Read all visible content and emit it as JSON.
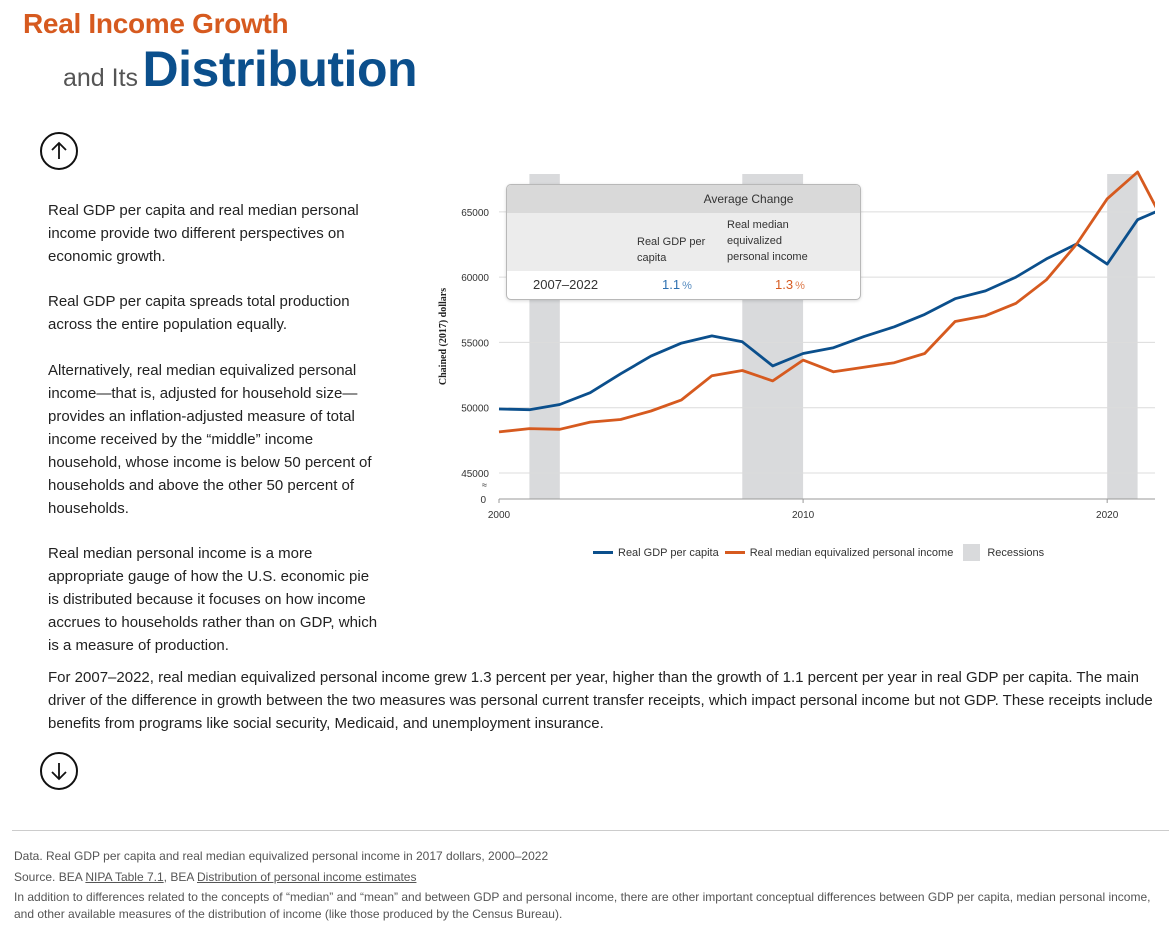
{
  "header": {
    "title_line1": "Real Income Growth",
    "title_prefix": "and Its",
    "title_main": "Distribution"
  },
  "paragraphs": [
    "Real GDP per capita and real median personal income provide two different perspectives on economic growth.",
    "Real GDP per capita spreads total production across the entire population equally.",
    "Alternatively, real median equivalized personal income—that is, adjusted for household size—provides an inflation-adjusted measure of total income received by the “middle” income household, whose income is below 50 percent of households and above the other 50 percent of households.",
    "Real median personal income is a more appropriate gauge of how the U.S. economic pie is distributed because it focuses on how income accrues to households rather than on GDP, which is a measure of production."
  ],
  "wide_paragraph": "For 2007–2022, real median equivalized personal income grew 1.3 percent per year, higher than the growth of 1.1 percent per year in real GDP per capita. The main driver of the difference in growth between the two measures was personal current transfer receipts, which impact personal income but not GDP. These receipts include benefits from programs like social security, Medicaid, and unemployment insurance.",
  "average_change": {
    "header": "Average Change",
    "col1": "Real GDP per capita",
    "col2": "Real median equivalized personal income",
    "period": "2007–2022",
    "value1": "1.1",
    "value2": "1.3",
    "unit": "%"
  },
  "legend": {
    "gdp": "Real GDP per capita",
    "income": "Real median equivalized personal income",
    "recessions": "Recessions"
  },
  "footer": {
    "data": "Data. Real GDP per capita and real median equivalized personal income in 2017 dollars, 2000–2022",
    "source_prefix": "Source. BEA ",
    "source_link1": "NIPA Table 7.1",
    "source_sep": ", BEA ",
    "source_link2": "Distribution of personal income estimates",
    "note": "In addition to differences related to the concepts of “median” and “mean” and between GDP and personal income, there are other important conceptual differences between GDP per capita, median personal income, and other available measures of the distribution of income (like those produced by the Census Bureau)."
  },
  "chart_data": {
    "type": "line",
    "ylabel": "Chained (2017) dollars",
    "xlabel": "",
    "x_ticks": [
      2000,
      2010,
      2020
    ],
    "y_ticks": [
      45000,
      50000,
      55000,
      60000,
      65000
    ],
    "y_break_label": "≈",
    "y_zero_label": "0",
    "xlim": [
      2000,
      2022
    ],
    "ylim": [
      45000,
      67900
    ],
    "x": [
      2000,
      2001,
      2002,
      2003,
      2004,
      2005,
      2006,
      2007,
      2008,
      2009,
      2010,
      2011,
      2012,
      2013,
      2014,
      2015,
      2016,
      2017,
      2018,
      2019,
      2020,
      2021,
      2022
    ],
    "series": [
      {
        "name": "Real GDP per capita",
        "color": "#0b4f8c",
        "values": [
          49900,
          49850,
          50250,
          51150,
          52600,
          53950,
          54950,
          55500,
          55050,
          53200,
          54150,
          54600,
          55450,
          56200,
          57150,
          58350,
          58950,
          60000,
          61400,
          62550,
          61000,
          64400,
          65400
        ]
      },
      {
        "name": "Real median equivalized personal income",
        "color": "#d65a1f",
        "values": [
          48150,
          48400,
          48350,
          48900,
          49100,
          49750,
          50600,
          52450,
          52850,
          52050,
          53650,
          52750,
          53100,
          53450,
          54150,
          56600,
          57050,
          58000,
          59800,
          62550,
          66000,
          68050,
          63600
        ]
      }
    ],
    "recessions": [
      [
        2001,
        2002
      ],
      [
        2008,
        2010
      ],
      [
        2020,
        2021
      ]
    ],
    "recession_color": "#d9dadc",
    "grid": true,
    "legend_position": "bottom"
  }
}
